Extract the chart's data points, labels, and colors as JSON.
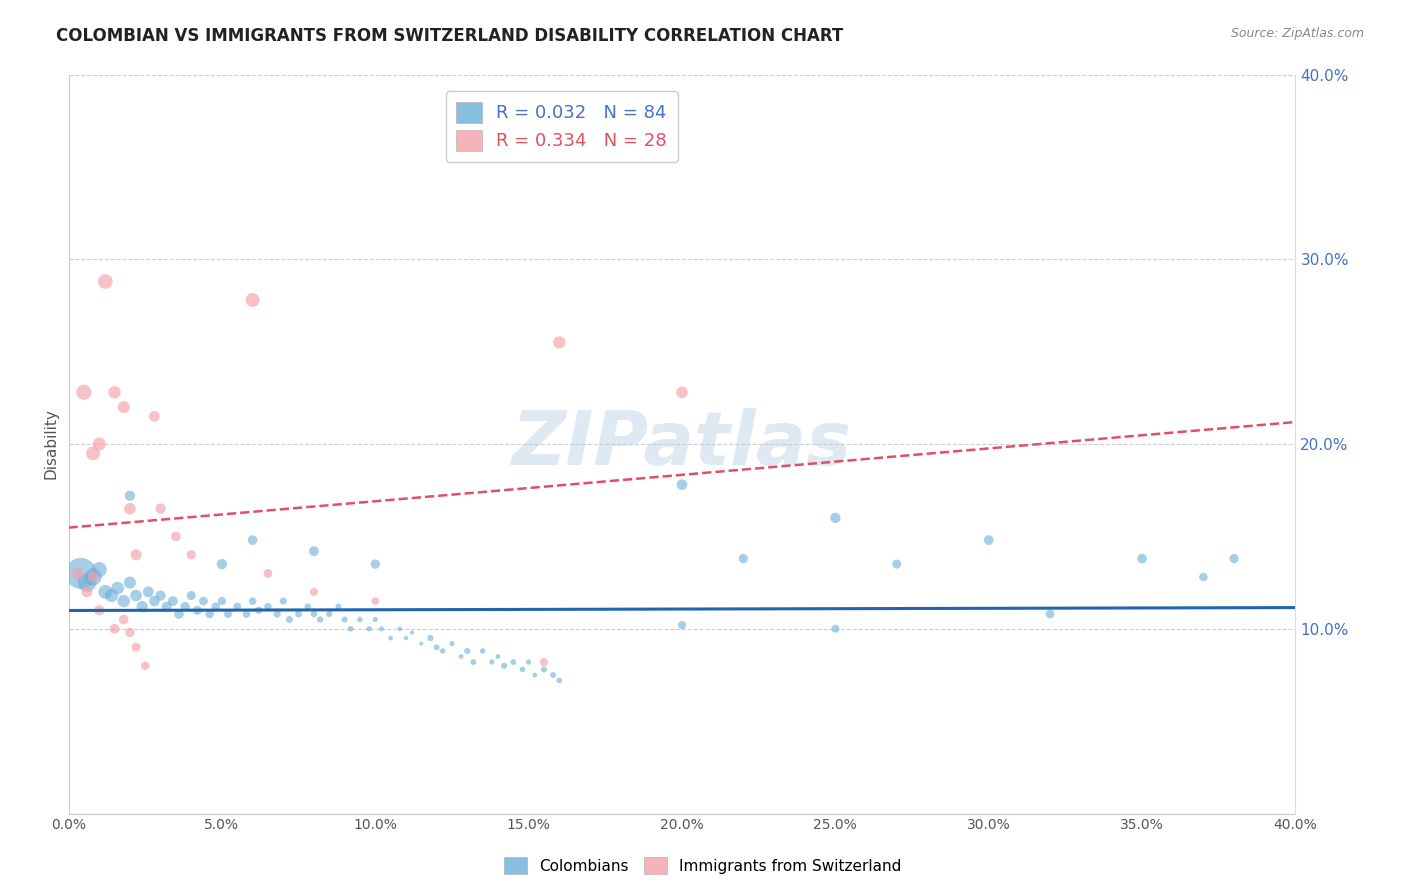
{
  "title": "COLOMBIAN VS IMMIGRANTS FROM SWITZERLAND DISABILITY CORRELATION CHART",
  "source": "Source: ZipAtlas.com",
  "ylabel": "Disability",
  "xlim": [
    0.0,
    0.4
  ],
  "ylim": [
    0.0,
    0.4
  ],
  "blue_color": "#6baed6",
  "pink_color": "#f4a0a8",
  "blue_line_color": "#2166ac",
  "pink_line_color": "#e05060",
  "watermark": "ZIPatlas",
  "blue_points": [
    [
      0.004,
      0.13
    ],
    [
      0.006,
      0.125
    ],
    [
      0.008,
      0.128
    ],
    [
      0.01,
      0.132
    ],
    [
      0.012,
      0.12
    ],
    [
      0.014,
      0.118
    ],
    [
      0.016,
      0.122
    ],
    [
      0.018,
      0.115
    ],
    [
      0.02,
      0.125
    ],
    [
      0.022,
      0.118
    ],
    [
      0.024,
      0.112
    ],
    [
      0.026,
      0.12
    ],
    [
      0.028,
      0.115
    ],
    [
      0.03,
      0.118
    ],
    [
      0.032,
      0.112
    ],
    [
      0.034,
      0.115
    ],
    [
      0.036,
      0.108
    ],
    [
      0.038,
      0.112
    ],
    [
      0.04,
      0.118
    ],
    [
      0.042,
      0.11
    ],
    [
      0.044,
      0.115
    ],
    [
      0.046,
      0.108
    ],
    [
      0.048,
      0.112
    ],
    [
      0.05,
      0.115
    ],
    [
      0.052,
      0.108
    ],
    [
      0.055,
      0.112
    ],
    [
      0.058,
      0.108
    ],
    [
      0.06,
      0.115
    ],
    [
      0.062,
      0.11
    ],
    [
      0.065,
      0.112
    ],
    [
      0.068,
      0.108
    ],
    [
      0.07,
      0.115
    ],
    [
      0.072,
      0.105
    ],
    [
      0.075,
      0.108
    ],
    [
      0.078,
      0.112
    ],
    [
      0.08,
      0.108
    ],
    [
      0.082,
      0.105
    ],
    [
      0.085,
      0.108
    ],
    [
      0.088,
      0.112
    ],
    [
      0.09,
      0.105
    ],
    [
      0.092,
      0.1
    ],
    [
      0.095,
      0.105
    ],
    [
      0.098,
      0.1
    ],
    [
      0.1,
      0.105
    ],
    [
      0.102,
      0.1
    ],
    [
      0.105,
      0.095
    ],
    [
      0.108,
      0.1
    ],
    [
      0.11,
      0.095
    ],
    [
      0.112,
      0.098
    ],
    [
      0.115,
      0.092
    ],
    [
      0.118,
      0.095
    ],
    [
      0.12,
      0.09
    ],
    [
      0.122,
      0.088
    ],
    [
      0.125,
      0.092
    ],
    [
      0.128,
      0.085
    ],
    [
      0.13,
      0.088
    ],
    [
      0.132,
      0.082
    ],
    [
      0.135,
      0.088
    ],
    [
      0.138,
      0.082
    ],
    [
      0.14,
      0.085
    ],
    [
      0.142,
      0.08
    ],
    [
      0.145,
      0.082
    ],
    [
      0.148,
      0.078
    ],
    [
      0.15,
      0.082
    ],
    [
      0.152,
      0.075
    ],
    [
      0.155,
      0.078
    ],
    [
      0.158,
      0.075
    ],
    [
      0.16,
      0.072
    ],
    [
      0.05,
      0.135
    ],
    [
      0.08,
      0.142
    ],
    [
      0.02,
      0.172
    ],
    [
      0.06,
      0.148
    ],
    [
      0.1,
      0.135
    ],
    [
      0.2,
      0.178
    ],
    [
      0.25,
      0.16
    ],
    [
      0.3,
      0.148
    ],
    [
      0.35,
      0.138
    ],
    [
      0.22,
      0.138
    ],
    [
      0.27,
      0.135
    ],
    [
      0.32,
      0.108
    ],
    [
      0.37,
      0.128
    ],
    [
      0.2,
      0.102
    ],
    [
      0.25,
      0.1
    ],
    [
      0.38,
      0.138
    ]
  ],
  "blue_sizes": [
    500,
    180,
    150,
    120,
    100,
    90,
    85,
    80,
    75,
    70,
    65,
    62,
    58,
    55,
    52,
    50,
    48,
    45,
    43,
    42,
    40,
    38,
    36,
    35,
    33,
    32,
    31,
    30,
    29,
    28,
    27,
    26,
    25,
    24,
    23,
    22,
    21,
    20,
    19,
    18,
    17,
    16,
    15,
    14,
    13,
    12,
    11,
    10,
    9,
    8,
    20,
    18,
    16,
    14,
    12,
    20,
    18,
    16,
    14,
    12,
    20,
    18,
    16,
    14,
    12,
    20,
    18,
    16,
    55,
    50,
    55,
    48,
    45,
    60,
    55,
    50,
    48,
    45,
    43,
    40,
    38,
    35,
    33,
    45
  ],
  "pink_points": [
    [
      0.005,
      0.228
    ],
    [
      0.008,
      0.195
    ],
    [
      0.01,
      0.2
    ],
    [
      0.015,
      0.228
    ],
    [
      0.018,
      0.22
    ],
    [
      0.02,
      0.165
    ],
    [
      0.022,
      0.14
    ],
    [
      0.028,
      0.215
    ],
    [
      0.03,
      0.165
    ],
    [
      0.035,
      0.15
    ],
    [
      0.04,
      0.14
    ],
    [
      0.065,
      0.13
    ],
    [
      0.08,
      0.12
    ],
    [
      0.1,
      0.115
    ],
    [
      0.012,
      0.288
    ],
    [
      0.06,
      0.278
    ],
    [
      0.003,
      0.13
    ],
    [
      0.006,
      0.12
    ],
    [
      0.008,
      0.128
    ],
    [
      0.01,
      0.11
    ],
    [
      0.015,
      0.1
    ],
    [
      0.018,
      0.105
    ],
    [
      0.02,
      0.098
    ],
    [
      0.022,
      0.09
    ],
    [
      0.025,
      0.08
    ],
    [
      0.16,
      0.255
    ],
    [
      0.2,
      0.228
    ],
    [
      0.155,
      0.082
    ]
  ],
  "pink_sizes": [
    120,
    100,
    90,
    80,
    75,
    70,
    65,
    60,
    55,
    50,
    45,
    40,
    35,
    30,
    110,
    100,
    70,
    65,
    60,
    55,
    50,
    48,
    45,
    42,
    38,
    80,
    70,
    35
  ]
}
